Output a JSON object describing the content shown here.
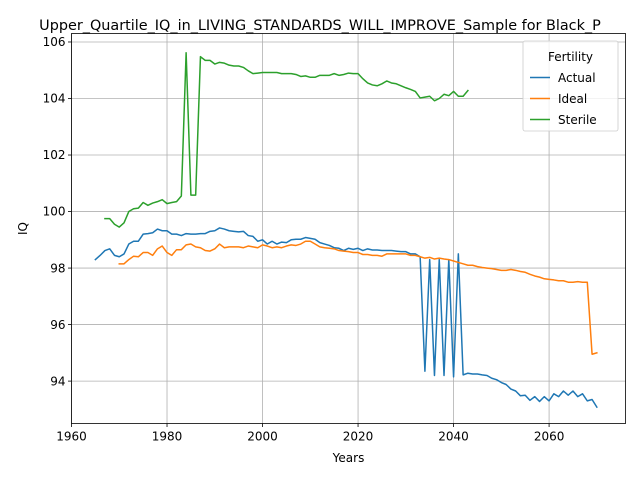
{
  "chart_data": {
    "type": "line",
    "title": "Upper_Quartile_IQ_in_LIVING_STANDARDS_WILL_IMPROVE_Sample for Black_P",
    "xlabel": "Years",
    "ylabel": "IQ",
    "xlim": [
      1960,
      2076
    ],
    "ylim": [
      92.5,
      106.3
    ],
    "xticks": [
      1960,
      1980,
      2000,
      2020,
      2040,
      2060
    ],
    "yticks": [
      94,
      96,
      98,
      100,
      102,
      104,
      106
    ],
    "grid": true,
    "legend": {
      "title": "Fertility",
      "placement": "top-right"
    },
    "series": [
      {
        "name": "Actual",
        "color": "#1f77b4",
        "points": [
          [
            1965,
            98.3
          ],
          [
            1966,
            98.45
          ],
          [
            1967,
            98.62
          ],
          [
            1968,
            98.68
          ],
          [
            1969,
            98.45
          ],
          [
            1970,
            98.4
          ],
          [
            1971,
            98.5
          ],
          [
            1972,
            98.85
          ],
          [
            1973,
            98.95
          ],
          [
            1974,
            98.95
          ],
          [
            1975,
            99.2
          ],
          [
            1976,
            99.22
          ],
          [
            1977,
            99.25
          ],
          [
            1978,
            99.38
          ],
          [
            1979,
            99.32
          ],
          [
            1980,
            99.32
          ],
          [
            1981,
            99.2
          ],
          [
            1982,
            99.2
          ],
          [
            1983,
            99.15
          ],
          [
            1984,
            99.22
          ],
          [
            1985,
            99.2
          ],
          [
            1986,
            99.2
          ],
          [
            1987,
            99.22
          ],
          [
            1988,
            99.22
          ],
          [
            1989,
            99.3
          ],
          [
            1990,
            99.32
          ],
          [
            1991,
            99.42
          ],
          [
            1992,
            99.38
          ],
          [
            1993,
            99.32
          ],
          [
            1994,
            99.3
          ],
          [
            1995,
            99.28
          ],
          [
            1996,
            99.3
          ],
          [
            1997,
            99.15
          ],
          [
            1998,
            99.12
          ],
          [
            1999,
            98.95
          ],
          [
            2000,
            99.0
          ],
          [
            2001,
            98.85
          ],
          [
            2002,
            98.95
          ],
          [
            2003,
            98.85
          ],
          [
            2004,
            98.92
          ],
          [
            2005,
            98.9
          ],
          [
            2006,
            99.0
          ],
          [
            2007,
            99.02
          ],
          [
            2008,
            99.02
          ],
          [
            2009,
            99.08
          ],
          [
            2010,
            99.05
          ],
          [
            2011,
            99.02
          ],
          [
            2012,
            98.9
          ],
          [
            2013,
            98.85
          ],
          [
            2014,
            98.8
          ],
          [
            2015,
            98.72
          ],
          [
            2016,
            98.7
          ],
          [
            2017,
            98.62
          ],
          [
            2018,
            98.7
          ],
          [
            2019,
            98.66
          ],
          [
            2020,
            98.7
          ],
          [
            2021,
            98.62
          ],
          [
            2022,
            98.68
          ],
          [
            2023,
            98.64
          ],
          [
            2024,
            98.64
          ],
          [
            2025,
            98.62
          ],
          [
            2026,
            98.62
          ],
          [
            2027,
            98.62
          ],
          [
            2028,
            98.6
          ],
          [
            2029,
            98.58
          ],
          [
            2030,
            98.58
          ],
          [
            2031,
            98.5
          ],
          [
            2032,
            98.5
          ],
          [
            2033,
            98.4
          ],
          [
            2034,
            94.35
          ],
          [
            2035,
            98.3
          ],
          [
            2036,
            94.2
          ],
          [
            2037,
            98.3
          ],
          [
            2038,
            94.2
          ],
          [
            2039,
            98.3
          ],
          [
            2040,
            94.15
          ],
          [
            2041,
            98.5
          ],
          [
            2042,
            94.22
          ],
          [
            2043,
            94.28
          ],
          [
            2044,
            94.25
          ],
          [
            2045,
            94.25
          ],
          [
            2046,
            94.22
          ],
          [
            2047,
            94.2
          ],
          [
            2048,
            94.1
          ],
          [
            2049,
            94.05
          ],
          [
            2050,
            93.95
          ],
          [
            2051,
            93.88
          ],
          [
            2052,
            93.72
          ],
          [
            2053,
            93.65
          ],
          [
            2054,
            93.48
          ],
          [
            2055,
            93.5
          ],
          [
            2056,
            93.32
          ],
          [
            2057,
            93.45
          ],
          [
            2058,
            93.28
          ],
          [
            2059,
            93.45
          ],
          [
            2060,
            93.3
          ],
          [
            2061,
            93.55
          ],
          [
            2062,
            93.45
          ],
          [
            2063,
            93.65
          ],
          [
            2064,
            93.5
          ],
          [
            2065,
            93.65
          ],
          [
            2066,
            93.45
          ],
          [
            2067,
            93.55
          ],
          [
            2068,
            93.3
          ],
          [
            2069,
            93.35
          ],
          [
            2070,
            93.08
          ]
        ]
      },
      {
        "name": "Ideal",
        "color": "#ff7f0e",
        "points": [
          [
            1970,
            98.15
          ],
          [
            1971,
            98.15
          ],
          [
            1972,
            98.3
          ],
          [
            1973,
            98.42
          ],
          [
            1974,
            98.4
          ],
          [
            1975,
            98.55
          ],
          [
            1976,
            98.55
          ],
          [
            1977,
            98.45
          ],
          [
            1978,
            98.68
          ],
          [
            1979,
            98.78
          ],
          [
            1980,
            98.55
          ],
          [
            1981,
            98.45
          ],
          [
            1982,
            98.65
          ],
          [
            1983,
            98.65
          ],
          [
            1984,
            98.82
          ],
          [
            1985,
            98.85
          ],
          [
            1986,
            98.75
          ],
          [
            1987,
            98.72
          ],
          [
            1988,
            98.62
          ],
          [
            1989,
            98.6
          ],
          [
            1990,
            98.68
          ],
          [
            1991,
            98.85
          ],
          [
            1992,
            98.72
          ],
          [
            1993,
            98.75
          ],
          [
            1994,
            98.75
          ],
          [
            1995,
            98.75
          ],
          [
            1996,
            98.72
          ],
          [
            1997,
            98.78
          ],
          [
            1998,
            98.75
          ],
          [
            1999,
            98.72
          ],
          [
            2000,
            98.82
          ],
          [
            2001,
            98.78
          ],
          [
            2002,
            98.72
          ],
          [
            2003,
            98.75
          ],
          [
            2004,
            98.72
          ],
          [
            2005,
            98.78
          ],
          [
            2006,
            98.82
          ],
          [
            2007,
            98.8
          ],
          [
            2008,
            98.85
          ],
          [
            2009,
            98.95
          ],
          [
            2010,
            98.95
          ],
          [
            2011,
            98.85
          ],
          [
            2012,
            98.75
          ],
          [
            2013,
            98.72
          ],
          [
            2014,
            98.7
          ],
          [
            2015,
            98.68
          ],
          [
            2016,
            98.62
          ],
          [
            2017,
            98.6
          ],
          [
            2018,
            98.58
          ],
          [
            2019,
            98.55
          ],
          [
            2020,
            98.55
          ],
          [
            2021,
            98.48
          ],
          [
            2022,
            98.48
          ],
          [
            2023,
            98.45
          ],
          [
            2024,
            98.45
          ],
          [
            2025,
            98.42
          ],
          [
            2026,
            98.5
          ],
          [
            2027,
            98.5
          ],
          [
            2028,
            98.5
          ],
          [
            2029,
            98.5
          ],
          [
            2030,
            98.5
          ],
          [
            2031,
            98.45
          ],
          [
            2032,
            98.45
          ],
          [
            2033,
            98.4
          ],
          [
            2034,
            98.35
          ],
          [
            2035,
            98.38
          ],
          [
            2036,
            98.32
          ],
          [
            2037,
            98.35
          ],
          [
            2038,
            98.32
          ],
          [
            2039,
            98.3
          ],
          [
            2040,
            98.25
          ],
          [
            2041,
            98.2
          ],
          [
            2042,
            98.15
          ],
          [
            2043,
            98.1
          ],
          [
            2044,
            98.1
          ],
          [
            2045,
            98.05
          ],
          [
            2046,
            98.02
          ],
          [
            2047,
            98.0
          ],
          [
            2048,
            97.98
          ],
          [
            2049,
            97.95
          ],
          [
            2050,
            97.92
          ],
          [
            2051,
            97.92
          ],
          [
            2052,
            97.95
          ],
          [
            2053,
            97.92
          ],
          [
            2054,
            97.88
          ],
          [
            2055,
            97.85
          ],
          [
            2056,
            97.78
          ],
          [
            2057,
            97.72
          ],
          [
            2058,
            97.68
          ],
          [
            2059,
            97.62
          ],
          [
            2060,
            97.6
          ],
          [
            2061,
            97.58
          ],
          [
            2062,
            97.55
          ],
          [
            2063,
            97.55
          ],
          [
            2064,
            97.5
          ],
          [
            2065,
            97.5
          ],
          [
            2066,
            97.52
          ],
          [
            2067,
            97.5
          ],
          [
            2068,
            97.5
          ],
          [
            2069,
            94.95
          ],
          [
            2070,
            95.0
          ]
        ]
      },
      {
        "name": "Sterile",
        "color": "#2ca02c",
        "points": [
          [
            1967,
            99.75
          ],
          [
            1968,
            99.75
          ],
          [
            1969,
            99.55
          ],
          [
            1970,
            99.45
          ],
          [
            1971,
            99.6
          ],
          [
            1972,
            100.0
          ],
          [
            1973,
            100.1
          ],
          [
            1974,
            100.12
          ],
          [
            1975,
            100.32
          ],
          [
            1976,
            100.22
          ],
          [
            1977,
            100.3
          ],
          [
            1978,
            100.35
          ],
          [
            1979,
            100.42
          ],
          [
            1980,
            100.28
          ],
          [
            1981,
            100.32
          ],
          [
            1982,
            100.35
          ],
          [
            1983,
            100.55
          ],
          [
            1984,
            105.62
          ],
          [
            1985,
            100.58
          ],
          [
            1986,
            100.58
          ],
          [
            1987,
            105.48
          ],
          [
            1988,
            105.35
          ],
          [
            1989,
            105.35
          ],
          [
            1990,
            105.22
          ],
          [
            1991,
            105.28
          ],
          [
            1992,
            105.25
          ],
          [
            1993,
            105.18
          ],
          [
            1994,
            105.15
          ],
          [
            1995,
            105.15
          ],
          [
            1996,
            105.1
          ],
          [
            1997,
            104.98
          ],
          [
            1998,
            104.88
          ],
          [
            1999,
            104.9
          ],
          [
            2000,
            104.92
          ],
          [
            2001,
            104.92
          ],
          [
            2002,
            104.92
          ],
          [
            2003,
            104.92
          ],
          [
            2004,
            104.88
          ],
          [
            2005,
            104.88
          ],
          [
            2006,
            104.88
          ],
          [
            2007,
            104.85
          ],
          [
            2008,
            104.78
          ],
          [
            2009,
            104.8
          ],
          [
            2010,
            104.75
          ],
          [
            2011,
            104.75
          ],
          [
            2012,
            104.82
          ],
          [
            2013,
            104.82
          ],
          [
            2014,
            104.82
          ],
          [
            2015,
            104.88
          ],
          [
            2016,
            104.82
          ],
          [
            2017,
            104.85
          ],
          [
            2018,
            104.9
          ],
          [
            2019,
            104.88
          ],
          [
            2020,
            104.88
          ],
          [
            2021,
            104.7
          ],
          [
            2022,
            104.55
          ],
          [
            2023,
            104.48
          ],
          [
            2024,
            104.45
          ],
          [
            2025,
            104.52
          ],
          [
            2026,
            104.62
          ],
          [
            2027,
            104.55
          ],
          [
            2028,
            104.52
          ],
          [
            2029,
            104.45
          ],
          [
            2030,
            104.38
          ],
          [
            2031,
            104.32
          ],
          [
            2032,
            104.25
          ],
          [
            2033,
            104.02
          ],
          [
            2034,
            104.05
          ],
          [
            2035,
            104.08
          ],
          [
            2036,
            103.92
          ],
          [
            2037,
            104.0
          ],
          [
            2038,
            104.15
          ],
          [
            2039,
            104.1
          ],
          [
            2040,
            104.25
          ],
          [
            2041,
            104.08
          ],
          [
            2042,
            104.08
          ],
          [
            2043,
            104.28
          ]
        ]
      }
    ]
  }
}
